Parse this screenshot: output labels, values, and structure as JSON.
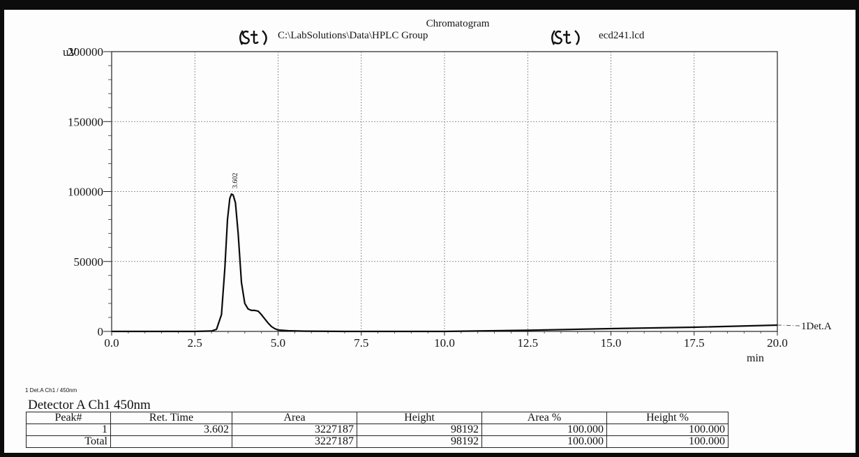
{
  "header": {
    "title": "Chromatogram",
    "path": "C:\\LabSolutions\\Data\\HPLC Group",
    "file": "ecd241.lcd"
  },
  "chart_data": {
    "type": "line",
    "title": "Chromatogram",
    "xlabel": "min",
    "ylabel": "uV",
    "xlim": [
      0,
      20
    ],
    "ylim": [
      0,
      200000
    ],
    "x_ticks": [
      0,
      2.5,
      5,
      7.5,
      10,
      12.5,
      15,
      17.5,
      20
    ],
    "x_tick_labels": [
      "0.0",
      "2.5",
      "5.0",
      "7.5",
      "10.0",
      "12.5",
      "15.0",
      "17.5",
      "20.0"
    ],
    "y_ticks": [
      0,
      50000,
      100000,
      150000,
      200000
    ],
    "y_tick_labels": [
      "0",
      "50000",
      "100000",
      "150000",
      "200000"
    ],
    "grid": true,
    "series": [
      {
        "name": "1Det.A",
        "x": [
          0,
          2.5,
          3.0,
          3.15,
          3.3,
          3.4,
          3.48,
          3.55,
          3.6,
          3.65,
          3.72,
          3.8,
          3.9,
          4.0,
          4.1,
          4.2,
          4.3,
          4.4,
          4.5,
          4.6,
          4.7,
          4.8,
          4.9,
          5.0,
          5.3,
          5.8,
          7.0,
          8.4,
          10.0,
          12.5,
          15.0,
          17.5,
          20.0
        ],
        "y": [
          0,
          0,
          300,
          1500,
          12000,
          45000,
          80000,
          95000,
          98192,
          97500,
          92000,
          70000,
          35000,
          20000,
          16000,
          15000,
          15000,
          14500,
          12000,
          9000,
          6000,
          3500,
          2000,
          1000,
          500,
          200,
          0,
          0,
          0,
          800,
          2000,
          3000,
          4500
        ]
      }
    ],
    "peak_labels": [
      {
        "x": 3.602,
        "y": 98192,
        "text": "3.602"
      }
    ],
    "trace_label": "1Det.A",
    "legend_note": "1  Det.A Ch1 / 450nm"
  },
  "detector": {
    "title": "Detector A Ch1 450nm",
    "columns": [
      "Peak#",
      "Ret. Time",
      "Area",
      "Height",
      "Area %",
      "Height %"
    ],
    "rows": [
      [
        "1",
        "3.602",
        "3227187",
        "98192",
        "100.000",
        "100.000"
      ],
      [
        "Total",
        "",
        "3227187",
        "98192",
        "100.000",
        "100.000"
      ]
    ]
  }
}
